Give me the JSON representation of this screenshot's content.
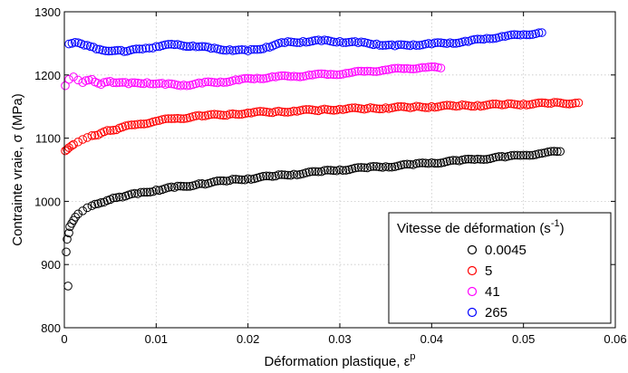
{
  "chart_data": {
    "type": "scatter",
    "xlabel": "Déformation plastique, ",
    "xlabel_symbol": "ε",
    "xlabel_sup": "p",
    "ylabel": "Contrainte vraie, ",
    "ylabel_symbol": "σ",
    "ylabel_unit": " (MPa)",
    "xlim": [
      0,
      0.06
    ],
    "ylim": [
      800,
      1300
    ],
    "xticks": [
      0,
      0.01,
      0.02,
      0.03,
      0.04,
      0.05,
      0.06
    ],
    "xtick_labels": [
      "0",
      "0.01",
      "0.02",
      "0.03",
      "0.04",
      "0.05",
      "0.06"
    ],
    "yticks": [
      800,
      900,
      1000,
      1100,
      1200,
      1300
    ],
    "ytick_labels": [
      "800",
      "900",
      "1000",
      "1100",
      "1200",
      "1300"
    ],
    "grid": true,
    "legend": {
      "title": "Vitesse de déformation (s",
      "title_sup": "-1",
      "title_end": ")",
      "placement": "bottom-right",
      "entries": [
        "0.0045",
        "5",
        "41",
        "265"
      ]
    },
    "series": [
      {
        "name": "0.0045",
        "color": "#000000",
        "x": [
          0.0004,
          0.0002,
          0.0003,
          0.0005,
          0.0006,
          0.0008,
          0.001,
          0.0012,
          0.0015,
          0.002,
          0.0025,
          0.003,
          0.004,
          0.005,
          0.006,
          0.008,
          0.01,
          0.012,
          0.015,
          0.018,
          0.02,
          0.023,
          0.025,
          0.028,
          0.03,
          0.033,
          0.035,
          0.038,
          0.04,
          0.043,
          0.045,
          0.048,
          0.05,
          0.052,
          0.054
        ],
        "y": [
          866,
          920,
          940,
          950,
          960,
          965,
          970,
          975,
          980,
          985,
          990,
          993,
          998,
          1003,
          1007,
          1012,
          1018,
          1022,
          1028,
          1033,
          1036,
          1040,
          1043,
          1047,
          1050,
          1053,
          1055,
          1058,
          1061,
          1064,
          1067,
          1070,
          1073,
          1076,
          1079
        ]
      },
      {
        "name": "5",
        "color": "#ff0000",
        "x": [
          0.0001,
          0.0003,
          0.0005,
          0.0008,
          0.001,
          0.0015,
          0.002,
          0.0025,
          0.003,
          0.004,
          0.005,
          0.006,
          0.008,
          0.01,
          0.012,
          0.015,
          0.018,
          0.02,
          0.023,
          0.025,
          0.028,
          0.03,
          0.033,
          0.035,
          0.038,
          0.04,
          0.043,
          0.045,
          0.048,
          0.05,
          0.053,
          0.056
        ],
        "y": [
          1080,
          1082,
          1085,
          1088,
          1090,
          1094,
          1098,
          1101,
          1104,
          1108,
          1112,
          1116,
          1122,
          1127,
          1131,
          1135,
          1138,
          1140,
          1142,
          1143,
          1145,
          1146,
          1147,
          1148,
          1149,
          1150,
          1151,
          1152,
          1153,
          1154,
          1155,
          1156
        ]
      },
      {
        "name": "41",
        "color": "#ff00ff",
        "x": [
          0.0001,
          0.0005,
          0.001,
          0.0015,
          0.002,
          0.003,
          0.004,
          0.005,
          0.007,
          0.009,
          0.011,
          0.013,
          0.015,
          0.017,
          0.019,
          0.021,
          0.023,
          0.025,
          0.027,
          0.029,
          0.031,
          0.033,
          0.035,
          0.037,
          0.039,
          0.041
        ],
        "y": [
          1183,
          1193,
          1197,
          1192,
          1188,
          1193,
          1185,
          1190,
          1186,
          1188,
          1185,
          1184,
          1187,
          1189,
          1192,
          1195,
          1197,
          1198,
          1200,
          1201,
          1203,
          1206,
          1208,
          1210,
          1212,
          1211
        ]
      },
      {
        "name": "265",
        "color": "#0000ff",
        "x": [
          0.0005,
          0.0015,
          0.0025,
          0.0035,
          0.0065,
          0.0085,
          0.01,
          0.012,
          0.014,
          0.016,
          0.018,
          0.02,
          0.022,
          0.024,
          0.026,
          0.028,
          0.03,
          0.032,
          0.034,
          0.036,
          0.038,
          0.04,
          0.042,
          0.044,
          0.046,
          0.048,
          0.05,
          0.052
        ],
        "y": [
          1249,
          1251,
          1247,
          1241,
          1237,
          1241,
          1245,
          1248,
          1246,
          1242,
          1240,
          1238,
          1244,
          1251,
          1253,
          1254,
          1253,
          1251,
          1249,
          1246,
          1248,
          1249,
          1251,
          1253,
          1258,
          1261,
          1264,
          1267
        ]
      }
    ]
  }
}
